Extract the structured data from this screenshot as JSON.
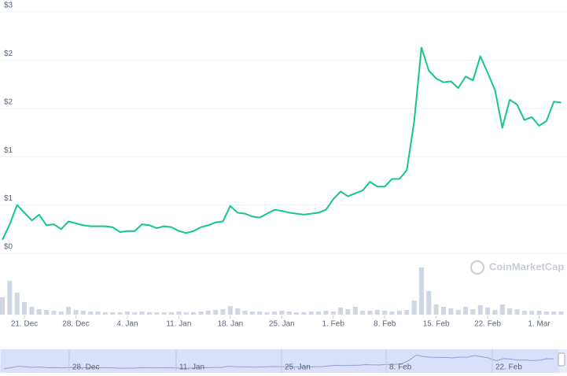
{
  "chart_data": {
    "type": "line",
    "categories": [
      null,
      null,
      null,
      "21. Dec",
      null,
      null,
      null,
      null,
      null,
      null,
      "28. Dec",
      null,
      null,
      null,
      null,
      null,
      null,
      "4. Jan",
      null,
      null,
      null,
      null,
      null,
      null,
      "11. Jan",
      null,
      null,
      null,
      null,
      null,
      null,
      "18. Jan",
      null,
      null,
      null,
      null,
      null,
      null,
      "25. Jan",
      null,
      null,
      null,
      null,
      null,
      null,
      "1. Feb",
      null,
      null,
      null,
      null,
      null,
      null,
      "8. Feb",
      null,
      null,
      null,
      null,
      null,
      null,
      "15. Feb",
      null,
      null,
      null,
      null,
      null,
      null,
      "22. Feb",
      null,
      null,
      null,
      null,
      null,
      null,
      "1. Mar",
      null,
      null,
      null
    ],
    "series": [
      {
        "color": "#16c784",
        "values": [
          0.14,
          0.3,
          0.5,
          0.42,
          0.34,
          0.4,
          0.29,
          0.3,
          0.25,
          0.33,
          0.31,
          0.29,
          0.28,
          0.28,
          0.28,
          0.27,
          0.22,
          0.23,
          0.23,
          0.3,
          0.29,
          0.26,
          0.28,
          0.27,
          0.23,
          0.21,
          0.23,
          0.27,
          0.29,
          0.32,
          0.33,
          0.49,
          0.42,
          0.41,
          0.38,
          0.37,
          0.41,
          0.45,
          0.44,
          0.42,
          0.41,
          0.4,
          0.41,
          0.42,
          0.45,
          0.56,
          0.64,
          0.59,
          0.62,
          0.65,
          0.74,
          0.69,
          0.69,
          0.77,
          0.77,
          0.86,
          1.36,
          2.13,
          1.89,
          1.81,
          1.77,
          1.78,
          1.71,
          1.83,
          1.79,
          2.04,
          1.87,
          1.69,
          1.3,
          1.59,
          1.54,
          1.38,
          1.41,
          1.32,
          1.37,
          1.57,
          1.56
        ]
      }
    ],
    "volume_color": "#cfd6e4",
    "volume_values": [
      22,
      43,
      28,
      16,
      10,
      7,
      6,
      5,
      4,
      10,
      6,
      5,
      4,
      4,
      3,
      3,
      3,
      4,
      3,
      4,
      3,
      3,
      3,
      3,
      4,
      3,
      3,
      4,
      5,
      6,
      7,
      11,
      8,
      5,
      4,
      4,
      3,
      4,
      5,
      4,
      3,
      3,
      4,
      4,
      5,
      4,
      9,
      7,
      10,
      5,
      5,
      6,
      5,
      4,
      5,
      6,
      18,
      60,
      30,
      13,
      10,
      8,
      6,
      10,
      7,
      12,
      9,
      6,
      13,
      8,
      7,
      5,
      5,
      5,
      4,
      4,
      4
    ],
    "ylim": [
      0,
      2.5
    ],
    "yticks": [
      {
        "value": 0,
        "label": "$0"
      },
      {
        "value": 0.5,
        "label": "$1"
      },
      {
        "value": 1,
        "label": "$1"
      },
      {
        "value": 1.5,
        "label": "$2"
      },
      {
        "value": 2,
        "label": "$2"
      },
      {
        "value": 2.5,
        "label": "$3"
      }
    ],
    "grid": true,
    "watermark": "CoinMarketCap",
    "navigator_labels": [
      "28. Dec",
      "11. Jan",
      "25. Jan",
      "8. Feb",
      "22. Feb"
    ]
  }
}
